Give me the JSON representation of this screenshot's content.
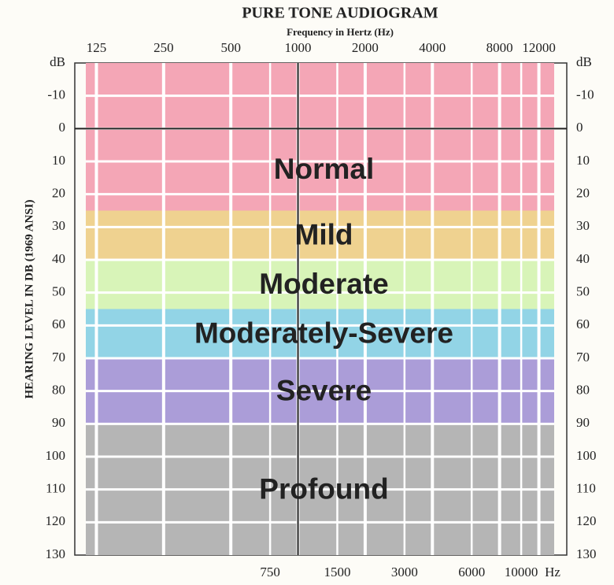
{
  "chart_data": {
    "type": "audiogram",
    "title": "PURE TONE AUDIOGRAM",
    "xlabel": "Frequency in Hertz (Hz)",
    "ylabel": "HEARING LEVEL IN DB (1969 ANSI)",
    "x_unit": "Hz",
    "xscale": "log",
    "xlim": [
      100,
      16000
    ],
    "ylim": [
      -20,
      130
    ],
    "y_inverted": true,
    "xticks_top": [
      125,
      250,
      500,
      1000,
      2000,
      4000,
      8000,
      12000
    ],
    "xticks_bottom": [
      750,
      1500,
      3000,
      6000,
      10000
    ],
    "yticks": [
      {
        "value": -20,
        "label": "dB"
      },
      -10,
      0,
      10,
      20,
      30,
      40,
      50,
      60,
      70,
      80,
      90,
      100,
      110,
      120,
      130
    ],
    "reference_lines": {
      "x": 1000,
      "y": 0
    },
    "grid": true,
    "bands": [
      {
        "name": "Normal",
        "from": -20,
        "to": 25,
        "color": "#f4a6b6"
      },
      {
        "name": "Mild",
        "from": 25,
        "to": 40,
        "color": "#efd290"
      },
      {
        "name": "Moderate",
        "from": 40,
        "to": 55,
        "color": "#d8f4b8"
      },
      {
        "name": "Moderately-Severe",
        "from": 55,
        "to": 70,
        "color": "#92d4e6"
      },
      {
        "name": "Severe",
        "from": 70,
        "to": 90,
        "color": "#ab9dd8"
      },
      {
        "name": "Profound",
        "from": 90,
        "to": 130,
        "color": "#b5b5b5"
      }
    ]
  }
}
